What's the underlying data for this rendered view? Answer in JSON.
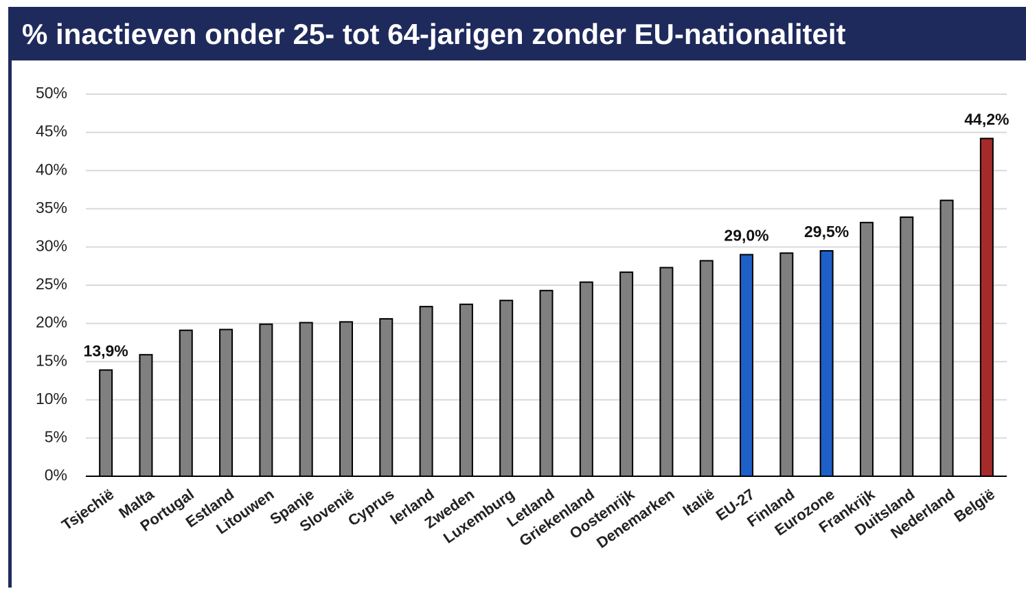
{
  "chart_data": {
    "type": "bar",
    "title": "% inactieven onder 25- tot 64-jarigen zonder EU-nationaliteit",
    "categories": [
      "Tsjechië",
      "Malta",
      "Portugal",
      "Estland",
      "Litouwen",
      "Spanje",
      "Slovenië",
      "Cyprus",
      "Ierland",
      "Zweden",
      "Luxemburg",
      "Letland",
      "Griekenland",
      "Oostenrijk",
      "Denemarken",
      "Italië",
      "EU-27",
      "Finland",
      "Eurozone",
      "Frankrijk",
      "Duitsland",
      "Nederland",
      "België"
    ],
    "values": [
      13.9,
      15.9,
      19.1,
      19.2,
      19.9,
      20.1,
      20.2,
      20.6,
      22.2,
      22.5,
      23.0,
      24.3,
      25.4,
      26.7,
      27.3,
      28.2,
      29.0,
      29.2,
      29.5,
      33.2,
      33.9,
      36.1,
      44.2
    ],
    "value_labels": [
      "13,9%",
      null,
      null,
      null,
      null,
      null,
      null,
      null,
      null,
      null,
      null,
      null,
      null,
      null,
      null,
      null,
      "29,0%",
      null,
      "29,5%",
      null,
      null,
      null,
      "44,2%"
    ],
    "colors": [
      "#808080",
      "#808080",
      "#808080",
      "#808080",
      "#808080",
      "#808080",
      "#808080",
      "#808080",
      "#808080",
      "#808080",
      "#808080",
      "#808080",
      "#808080",
      "#808080",
      "#808080",
      "#808080",
      "#1f5fc8",
      "#808080",
      "#1f5fc8",
      "#808080",
      "#808080",
      "#808080",
      "#a52a2a"
    ],
    "ylim": [
      0,
      50
    ],
    "yticks": [
      {
        "value": 0,
        "label": "0%"
      },
      {
        "value": 5,
        "label": "5%"
      },
      {
        "value": 10,
        "label": "10%"
      },
      {
        "value": 15,
        "label": "15%"
      },
      {
        "value": 20,
        "label": "20%"
      },
      {
        "value": 25,
        "label": "25%"
      },
      {
        "value": 30,
        "label": "30%"
      },
      {
        "value": 35,
        "label": "35%"
      },
      {
        "value": 40,
        "label": "40%"
      },
      {
        "value": 45,
        "label": "45%"
      },
      {
        "value": 50,
        "label": "50%"
      }
    ],
    "grid": true
  }
}
